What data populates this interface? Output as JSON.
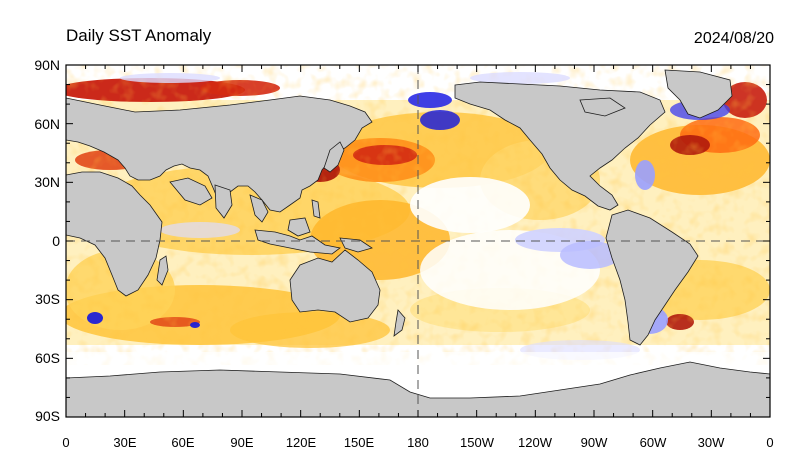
{
  "map": {
    "title": "Daily SST Anomaly",
    "date": "2024/08/20",
    "lat_labels": [
      "90N",
      "60N",
      "30N",
      "0",
      "30S",
      "60S",
      "90S"
    ],
    "lon_labels": [
      "0",
      "30E",
      "60E",
      "90E",
      "120E",
      "150E",
      "180",
      "150W",
      "120W",
      "90W",
      "60W",
      "30W",
      "0"
    ],
    "colors": {
      "land": "#c8c8c8",
      "coast": "#1e1e1e",
      "ocean_neutral": "#ffffff",
      "warm_light": "#ffe38a",
      "warm_mid": "#ffb62a",
      "warm_strong": "#ff7a10",
      "hot": "#d42a12",
      "very_hot": "#8c0e0a",
      "cool_light": "#dcdcff",
      "cool_mid": "#9aa0ff",
      "cool_strong": "#1f1fd8"
    },
    "map_type": "global equirectangular, centered on 180",
    "reference_lines": [
      "equator dashed",
      "180 meridian dashed"
    ]
  }
}
